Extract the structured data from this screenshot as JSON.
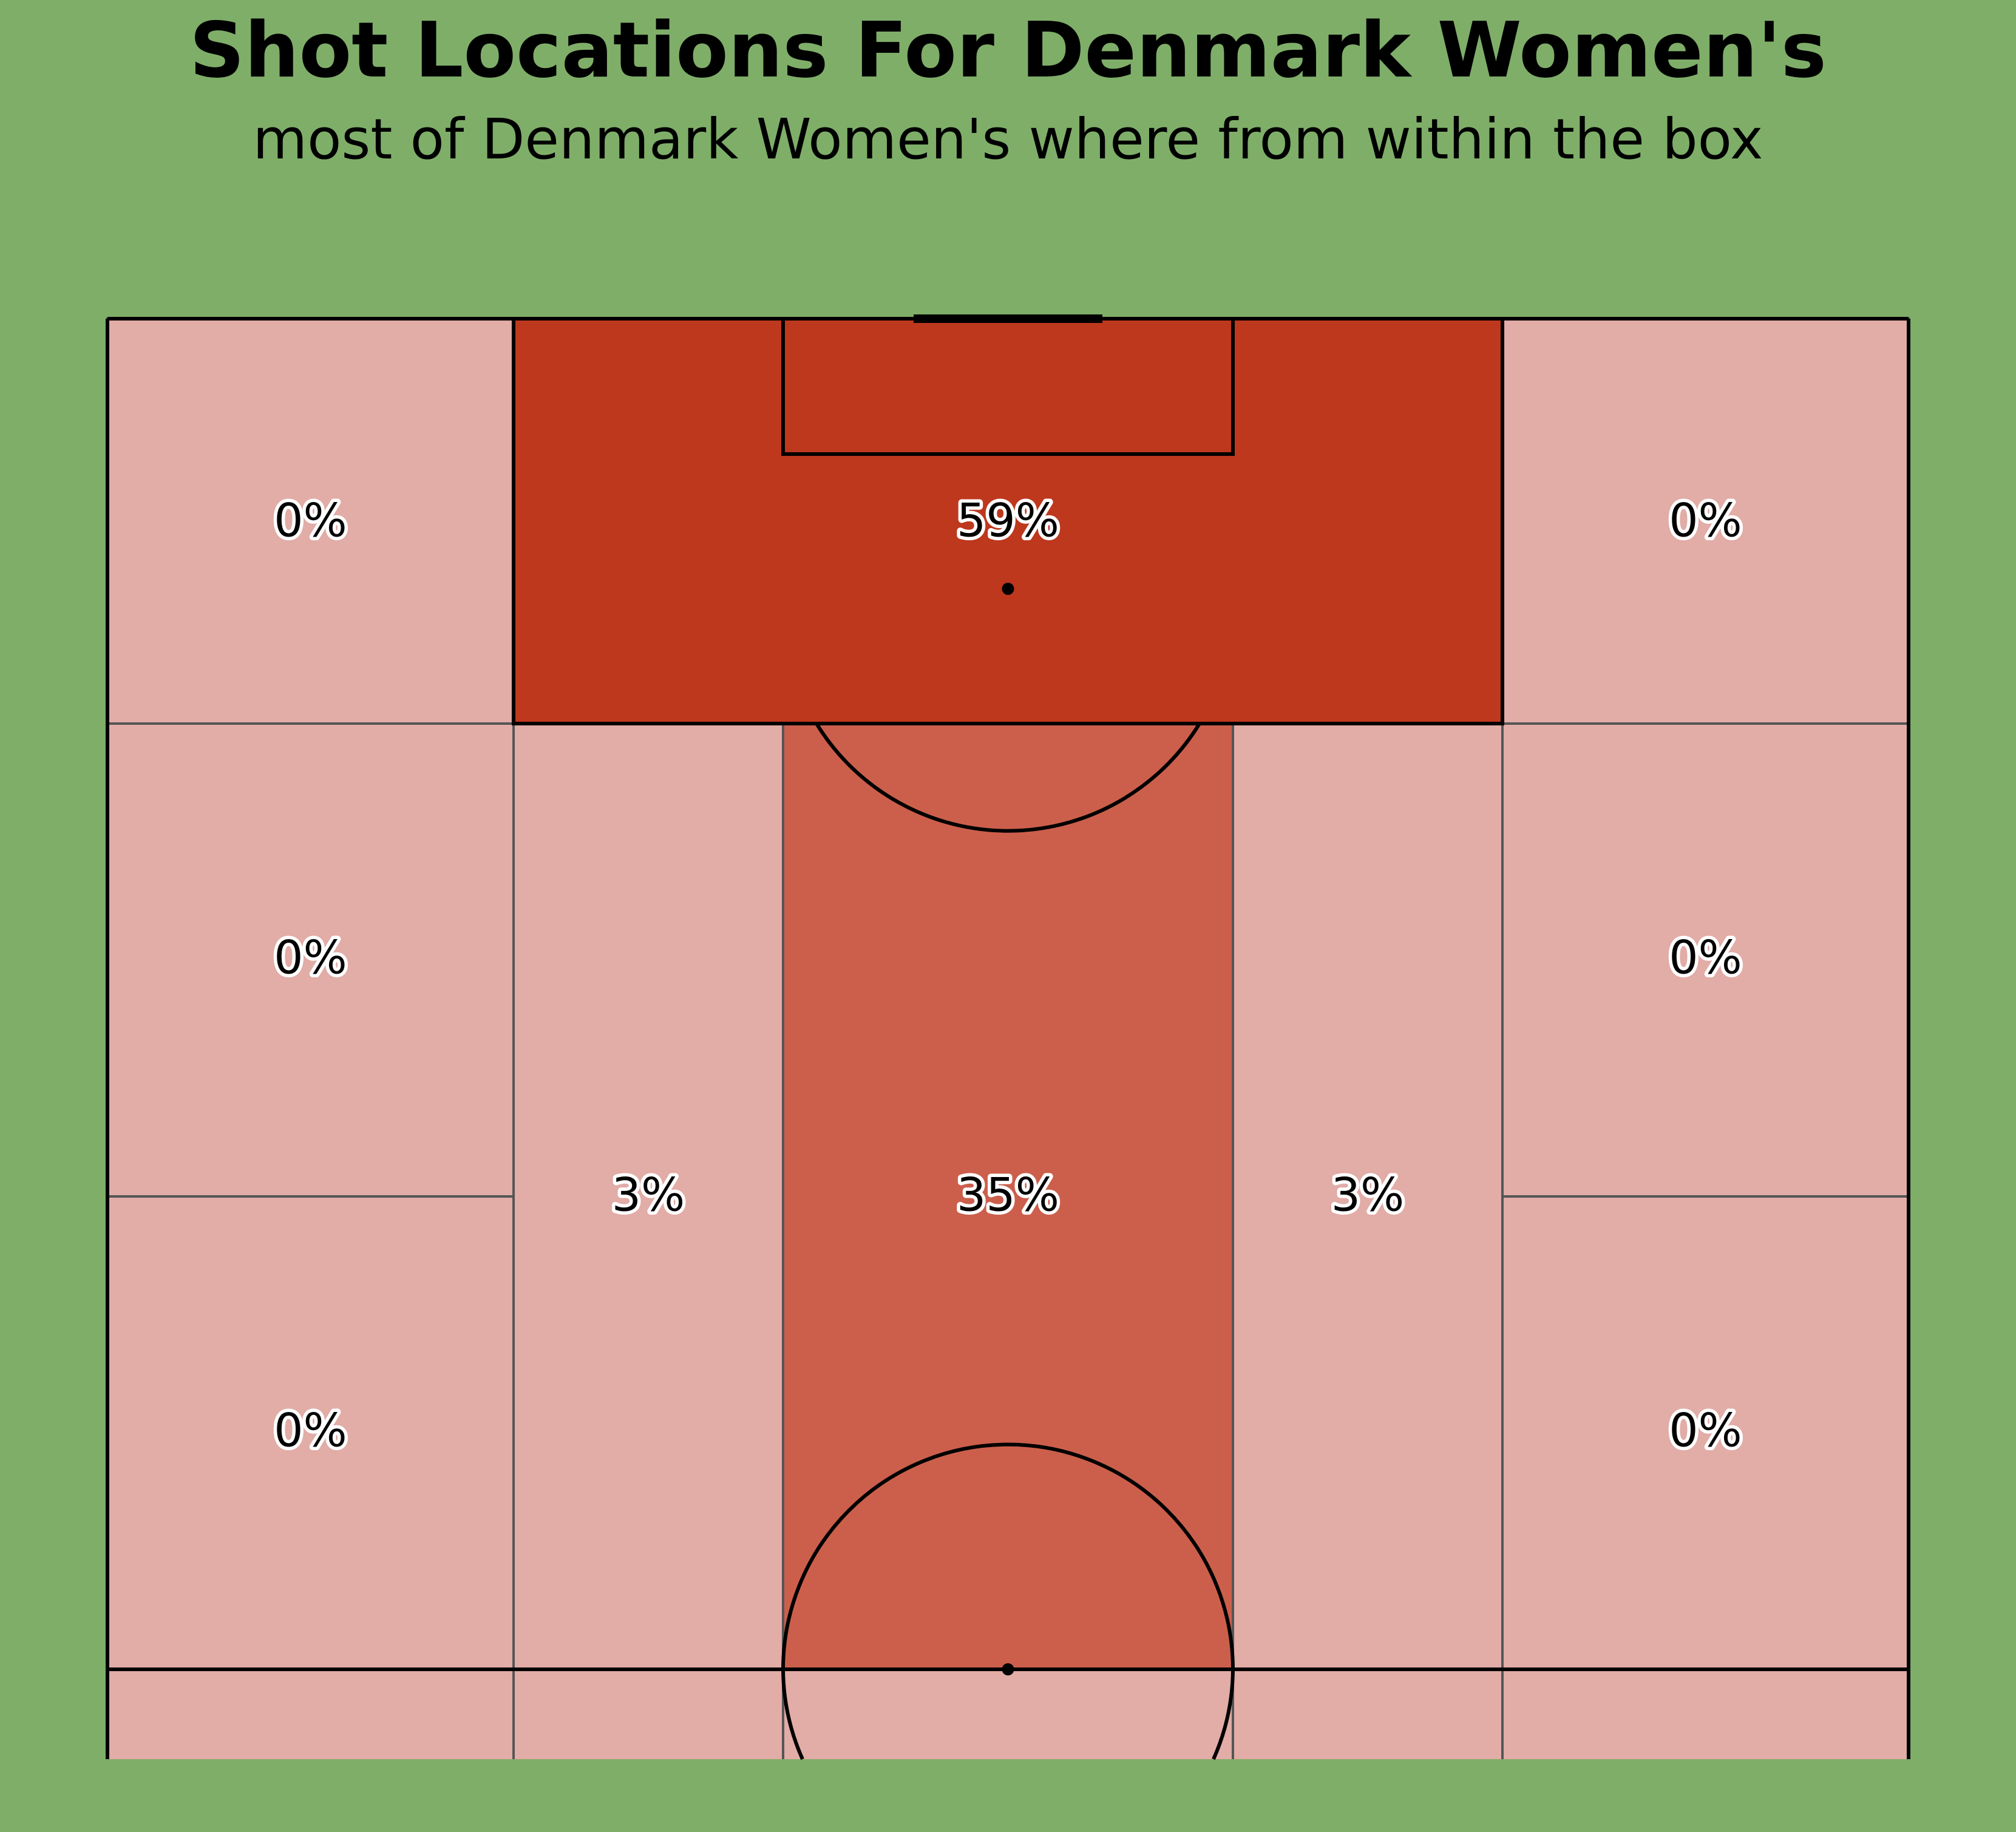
{
  "title": "Shot Locations For Denmark Women's",
  "subtitle": "most of Denmark Women's where from within the box",
  "colors": {
    "background": "#7fae69",
    "high": "#be381e",
    "medium": "#cc5f4c",
    "low": "#e2aca7",
    "zone_border": "#555555",
    "pitch_line": "#000000"
  },
  "chart_data": {
    "type": "heatmap",
    "title": "Shot Locations For Denmark Women's",
    "subtitle": "most of Denmark Women's where from within the box",
    "zones": [
      {
        "name": "left-wing-top",
        "value": 0,
        "label": "0%",
        "level": "low"
      },
      {
        "name": "left-wing-middle",
        "value": 0,
        "label": "0%",
        "level": "low"
      },
      {
        "name": "left-wing-bottom",
        "value": 0,
        "label": "0%",
        "level": "low"
      },
      {
        "name": "penalty-box",
        "value": 59,
        "label": "59%",
        "level": "high"
      },
      {
        "name": "left-half-space",
        "value": 3,
        "label": "3%",
        "level": "low"
      },
      {
        "name": "central-channel",
        "value": 35,
        "label": "35%",
        "level": "medium"
      },
      {
        "name": "right-half-space",
        "value": 3,
        "label": "3%",
        "level": "low"
      },
      {
        "name": "right-wing-top",
        "value": 0,
        "label": "0%",
        "level": "low"
      },
      {
        "name": "right-wing-middle",
        "value": 0,
        "label": "0%",
        "level": "low"
      },
      {
        "name": "right-wing-bottom",
        "value": 0,
        "label": "0%",
        "level": "low"
      }
    ]
  }
}
